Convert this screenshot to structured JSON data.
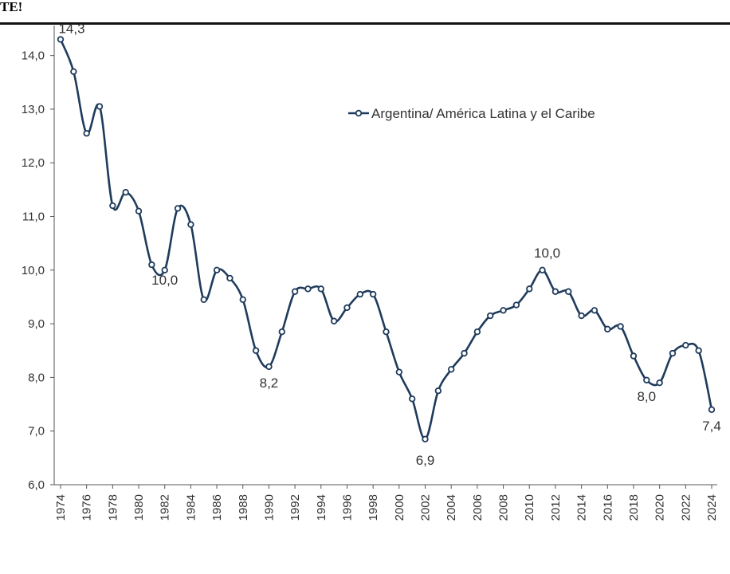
{
  "header": {
    "fragment": "TE!"
  },
  "chart_data": {
    "type": "line",
    "title": "",
    "xlabel": "",
    "ylabel": "",
    "ylim": [
      6.0,
      14.5
    ],
    "yticks": [
      "6,0",
      "7,0",
      "8,0",
      "9,0",
      "10,0",
      "11,0",
      "12,0",
      "13,0",
      "14,0"
    ],
    "ytick_values": [
      6,
      7,
      8,
      9,
      10,
      11,
      12,
      13,
      14
    ],
    "xticks": [
      "1974",
      "1976",
      "1978",
      "1980",
      "1982",
      "1984",
      "1986",
      "1988",
      "1990",
      "1992",
      "1994",
      "1996",
      "1998",
      "2000",
      "2002",
      "2004",
      "2006",
      "2008",
      "2010",
      "2012",
      "2014",
      "2016",
      "2018",
      "2020",
      "2022",
      "2024"
    ],
    "legend": {
      "position": "top-right"
    },
    "series": [
      {
        "name": "Argentina/ América Latina y el Caribe",
        "color": "#1f3b5c",
        "x": [
          1974,
          1975,
          1976,
          1977,
          1978,
          1979,
          1980,
          1981,
          1982,
          1983,
          1984,
          1985,
          1986,
          1987,
          1988,
          1989,
          1990,
          1991,
          1992,
          1993,
          1994,
          1995,
          1996,
          1997,
          1998,
          1999,
          2000,
          2001,
          2002,
          2003,
          2004,
          2005,
          2006,
          2007,
          2008,
          2009,
          2010,
          2011,
          2012,
          2013,
          2014,
          2015,
          2016,
          2017,
          2018,
          2019,
          2020,
          2021,
          2022,
          2023,
          2024
        ],
        "values": [
          14.3,
          13.7,
          12.55,
          13.05,
          11.2,
          11.45,
          11.1,
          10.1,
          10.0,
          11.15,
          10.85,
          9.45,
          10.0,
          9.85,
          9.45,
          8.5,
          8.2,
          8.85,
          9.6,
          9.65,
          9.65,
          9.05,
          9.3,
          9.55,
          9.55,
          8.85,
          8.1,
          7.6,
          6.85,
          7.75,
          8.15,
          8.45,
          8.85,
          9.15,
          9.25,
          9.35,
          9.65,
          10.0,
          9.6,
          9.6,
          9.15,
          9.25,
          8.9,
          8.95,
          8.4,
          7.95,
          7.9,
          8.45,
          8.6,
          8.5,
          7.4
        ]
      }
    ],
    "annotations": [
      {
        "x": 1974,
        "text": "14,3"
      },
      {
        "x": 1982,
        "text": "10,0"
      },
      {
        "x": 1990,
        "text": "8,2"
      },
      {
        "x": 2002,
        "text": "6,9"
      },
      {
        "x": 2011,
        "text": "10,0"
      },
      {
        "x": 2019,
        "text": "8,0"
      },
      {
        "x": 2024,
        "text": "7,4"
      }
    ]
  }
}
